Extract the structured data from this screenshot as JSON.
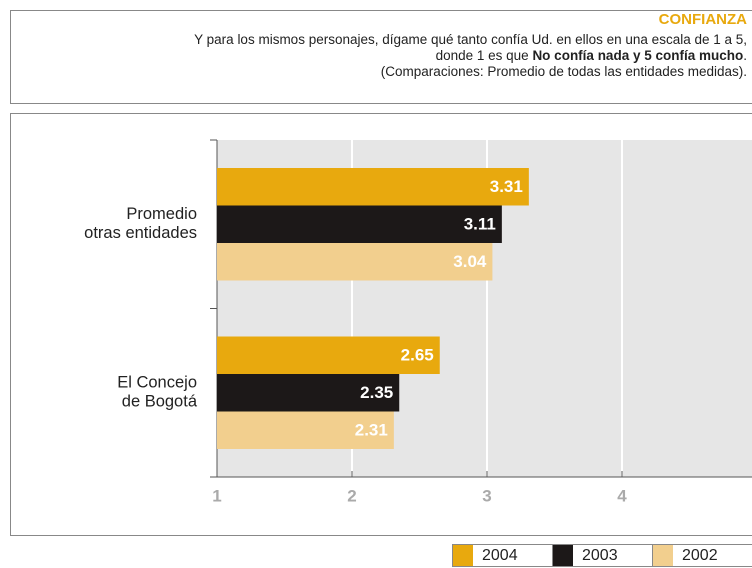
{
  "chart_data": {
    "type": "bar",
    "orientation": "horizontal",
    "title": "CONFIANZA",
    "subtitle": [
      [
        {
          "text": "Y para los mismos personajes, dígame qué tanto confía Ud. en ellos en una escala de 1 a 5,",
          "bold": false
        }
      ],
      [
        {
          "text": "donde 1 es que ",
          "bold": false
        },
        {
          "text": "No confía nada y 5 confía mucho",
          "bold": true
        },
        {
          "text": ".",
          "bold": false
        }
      ],
      [
        {
          "text": "(Comparaciones: Promedio de todas las entidades medidas).",
          "bold": false
        }
      ]
    ],
    "categories": [
      [
        "Promedio",
        "otras entidades"
      ],
      [
        "El Concejo",
        "de Bogotá"
      ]
    ],
    "series": [
      {
        "name": "2004",
        "color": "#e8a90e",
        "label_color": "#ffffff",
        "values": [
          3.31,
          2.65
        ]
      },
      {
        "name": "2003",
        "color": "#1c1818",
        "label_color": "#ffffff",
        "values": [
          3.11,
          2.35
        ]
      },
      {
        "name": "2002",
        "color": "#f2cf8e",
        "label_color": "#ffffff",
        "values": [
          3.04,
          2.31
        ]
      }
    ],
    "xlim": [
      1,
      5
    ],
    "xticks": [
      1,
      2,
      3,
      4
    ],
    "grid": true,
    "legend": "bottom-right"
  }
}
